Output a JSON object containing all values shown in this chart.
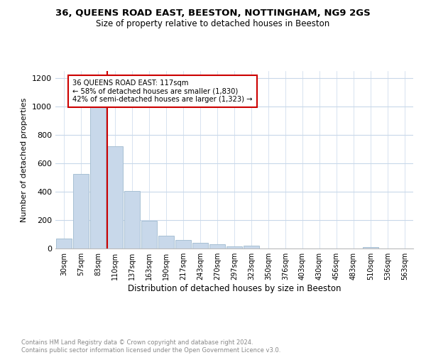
{
  "title": "36, QUEENS ROAD EAST, BEESTON, NOTTINGHAM, NG9 2GS",
  "subtitle": "Size of property relative to detached houses in Beeston",
  "xlabel": "Distribution of detached houses by size in Beeston",
  "ylabel": "Number of detached properties",
  "footer_line1": "Contains HM Land Registry data © Crown copyright and database right 2024.",
  "footer_line2": "Contains public sector information licensed under the Open Government Licence v3.0.",
  "bar_labels": [
    "30sqm",
    "57sqm",
    "83sqm",
    "110sqm",
    "137sqm",
    "163sqm",
    "190sqm",
    "217sqm",
    "243sqm",
    "270sqm",
    "297sqm",
    "323sqm",
    "350sqm",
    "376sqm",
    "403sqm",
    "430sqm",
    "456sqm",
    "483sqm",
    "510sqm",
    "536sqm",
    "563sqm"
  ],
  "bar_values": [
    70,
    525,
    1000,
    720,
    405,
    195,
    90,
    60,
    42,
    32,
    15,
    20,
    0,
    0,
    0,
    0,
    0,
    0,
    10,
    0,
    0
  ],
  "bar_color": "#c8d8ea",
  "bar_edge_color": "#a8c0d4",
  "marker_color": "#cc0000",
  "annotation_text_line1": "36 QUEENS ROAD EAST: 117sqm",
  "annotation_text_line2": "← 58% of detached houses are smaller (1,830)",
  "annotation_text_line3": "42% of semi-detached houses are larger (1,323) →",
  "annotation_box_color": "#ffffff",
  "annotation_box_edge_color": "#cc0000",
  "ylim": [
    0,
    1250
  ],
  "yticks": [
    0,
    200,
    400,
    600,
    800,
    1000,
    1200
  ],
  "bg_color": "#ffffff",
  "grid_color": "#c8d8ea"
}
